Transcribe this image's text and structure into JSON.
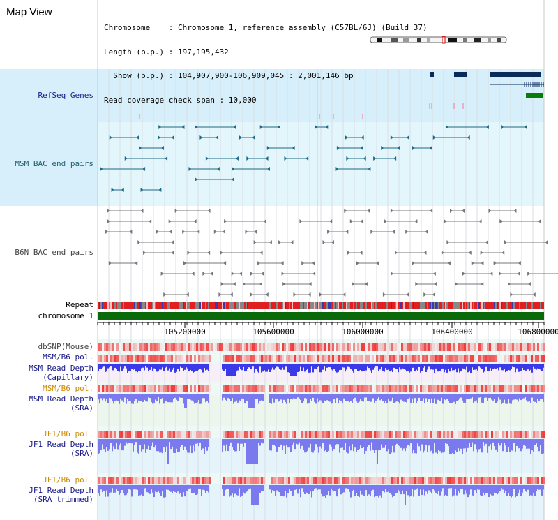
{
  "page": {
    "title": "Map View"
  },
  "info": {
    "chromosome_line": "Chromosome    : Chromosome 1, reference assembly (C57BL/6J) (Build 37)",
    "length_line": "Length (b.p.) : 197,195,432",
    "show_line": "  Show (b.p.) : 104,907,900-106,909,045 : 2,001,146 bp",
    "coverage_line": "Read coverage check span : 10,000"
  },
  "tracks": {
    "refseq": "RefSeq Genes",
    "msm_bac": "MSM BAC end pairs",
    "b6n_bac": "B6N BAC end pairs",
    "repeat": "Repeat",
    "chromosome": "chromosome 1",
    "dbsnp": "dbSNP(Mouse)",
    "msm_b6_pol_1": "MSM/B6 pol.",
    "msm_depth_cap_1": "MSM Read Depth",
    "msm_depth_cap_2": "(Capillary)",
    "msm_b6_pol_2": "MSM/B6 pol.",
    "msm_depth_sra_1": "MSM Read Depth",
    "msm_depth_sra_2": "(SRA)",
    "jf1_b6_pol_1": "JF1/B6 pol.",
    "jf1_depth_sra_1": "JF1 Read Depth",
    "jf1_depth_sra_2": "(SRA)",
    "jf1_b6_pol_2": "JF1/B6 pol.",
    "jf1_depth_trim_1": "JF1 Read Depth",
    "jf1_depth_trim_2": "(SRA trimmed)"
  },
  "axis": {
    "ticks": [
      "105200000",
      "105600000",
      "106000000",
      "106400000",
      "106800000"
    ]
  },
  "colors": {
    "refseq_bg": "#d6effa",
    "bac_bg": "#e2f6fb",
    "msm_feature": "#1f6a86",
    "gene": "#0a2a5a",
    "gene_green": "#0a7a0a",
    "chromosome_bar": "#0a6a0a",
    "depth_blue": "#3a3ae8",
    "depth_light": "#7a7aee"
  }
}
